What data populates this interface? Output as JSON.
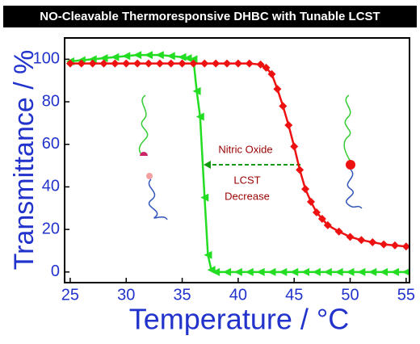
{
  "chart_data": {
    "type": "line",
    "title": "NO-Cleavable Thermoresponsive DHBC with Tunable LCST",
    "x_label": "Temperature / °C",
    "y_label": "Transmittance / %",
    "annotations": [
      "Nitric Oxide",
      "LCST",
      "Decrease"
    ],
    "xlim": [
      24.5,
      55.3
    ],
    "ylim": [
      -5,
      110
    ],
    "xticks": [
      25,
      30,
      35,
      40,
      45,
      50,
      55
    ],
    "yticks": [
      0,
      20,
      40,
      60,
      80,
      100
    ],
    "series": [
      {
        "name": "green",
        "color": "#22dd22",
        "marker": "triangle-left",
        "x": [
          25,
          26,
          27,
          28,
          29,
          30,
          31,
          32,
          33,
          34,
          35,
          35.5,
          36,
          36.3,
          36.6,
          37,
          37.3,
          37.6,
          38,
          39,
          40,
          41,
          42,
          43,
          44,
          45,
          46,
          47,
          48,
          49,
          50,
          51,
          52,
          53,
          54,
          55
        ],
        "values": [
          99,
          99.5,
          100,
          100.5,
          101,
          101.5,
          102,
          102,
          102,
          101.5,
          101,
          100.5,
          100,
          85,
          73,
          35,
          8,
          1,
          0,
          0,
          0,
          0,
          0,
          0,
          0,
          0,
          0,
          0,
          0,
          0,
          0,
          0,
          0,
          0,
          0,
          0
        ]
      },
      {
        "name": "red",
        "color": "#ee1111",
        "marker": "diamond",
        "x": [
          25,
          26,
          27,
          28,
          29,
          30,
          31,
          32,
          33,
          34,
          35,
          36,
          37,
          38,
          39,
          40,
          41,
          42,
          42.5,
          43,
          43.5,
          44,
          44.5,
          45,
          45.5,
          46,
          46.5,
          47,
          47.5,
          48,
          49,
          50,
          51,
          52,
          53,
          54,
          55
        ],
        "values": [
          98,
          98,
          98,
          98,
          98,
          98,
          98,
          98,
          98,
          98,
          98,
          98,
          98,
          98,
          98,
          98,
          98,
          97.5,
          96,
          93,
          86,
          78,
          69,
          59,
          48,
          39,
          33,
          28,
          25,
          22,
          19,
          16.5,
          15,
          14,
          13,
          12.5,
          12
        ]
      }
    ]
  }
}
